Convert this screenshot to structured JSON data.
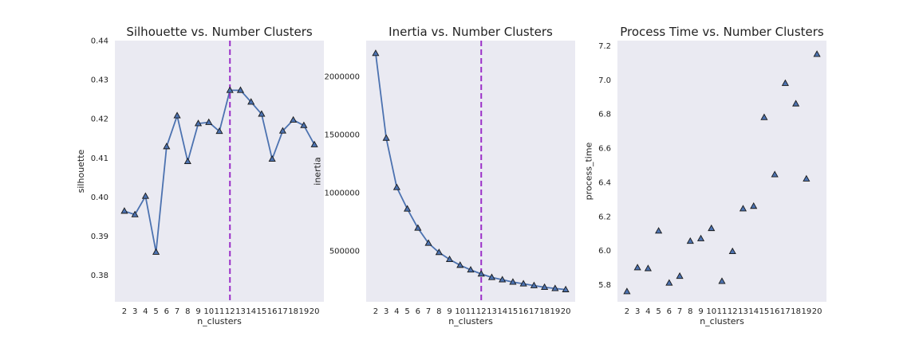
{
  "chart_data": [
    {
      "type": "line",
      "title": "Silhouette vs. Number Clusters",
      "xlabel": "n_clusters",
      "ylabel": "silhouette",
      "x": [
        2,
        3,
        4,
        5,
        6,
        7,
        8,
        9,
        10,
        11,
        12,
        13,
        14,
        15,
        16,
        17,
        18,
        19,
        20
      ],
      "values": [
        0.3964,
        0.3955,
        0.4002,
        0.3859,
        0.4129,
        0.4208,
        0.4091,
        0.4188,
        0.4191,
        0.4168,
        0.4273,
        0.4273,
        0.4243,
        0.4212,
        0.4097,
        0.4169,
        0.4197,
        0.4183,
        0.4134
      ],
      "xlim": [
        1.1,
        20.9
      ],
      "ylim": [
        0.3732,
        0.44
      ],
      "yticks": [
        0.38,
        0.39,
        0.4,
        0.41,
        0.42,
        0.43,
        0.44
      ],
      "ytick_labels": [
        "0.38",
        "0.39",
        "0.40",
        "0.41",
        "0.42",
        "0.43",
        "0.44"
      ],
      "xticks": [
        2,
        3,
        4,
        5,
        6,
        7,
        8,
        9,
        10,
        11,
        12,
        13,
        14,
        15,
        16,
        17,
        18,
        19,
        20
      ],
      "vline_x": 12,
      "grid": false,
      "color": "#4c72b0",
      "vline_color": "#9b30c8",
      "background": "#eaeaf2"
    },
    {
      "type": "line",
      "title": "Inertia vs. Number Clusters",
      "xlabel": "n_clusters",
      "ylabel": "inertia",
      "x": [
        2,
        3,
        4,
        5,
        6,
        7,
        8,
        9,
        10,
        11,
        12,
        13,
        14,
        15,
        16,
        17,
        18,
        19,
        20
      ],
      "values": [
        2200000,
        1470000,
        1045000,
        860000,
        695000,
        565000,
        485000,
        425000,
        375000,
        335000,
        300000,
        270000,
        250000,
        230000,
        215000,
        200000,
        185000,
        175000,
        165000
      ],
      "xlim": [
        1.1,
        20.9
      ],
      "ylim": [
        60000,
        2310000
      ],
      "yticks": [
        500000,
        1000000,
        1500000,
        2000000
      ],
      "ytick_labels": [
        "500000",
        "1000000",
        "1500000",
        "2000000"
      ],
      "xticks": [
        2,
        3,
        4,
        5,
        6,
        7,
        8,
        9,
        10,
        11,
        12,
        13,
        14,
        15,
        16,
        17,
        18,
        19,
        20
      ],
      "vline_x": 12,
      "grid": false,
      "color": "#4c72b0",
      "vline_color": "#9b30c8",
      "background": "#eaeaf2"
    },
    {
      "type": "scatter",
      "title": "Process Time vs. Number Clusters",
      "xlabel": "n_clusters",
      "ylabel": "process_time",
      "x": [
        2,
        3,
        4,
        5,
        6,
        7,
        8,
        9,
        10,
        11,
        12,
        13,
        14,
        15,
        16,
        17,
        18,
        19,
        20
      ],
      "values": [
        5.76,
        5.9,
        5.895,
        6.115,
        5.81,
        5.85,
        6.055,
        6.07,
        6.13,
        5.82,
        5.995,
        6.245,
        6.26,
        6.78,
        6.445,
        6.98,
        6.86,
        6.42,
        7.15
      ],
      "xlim": [
        1.1,
        20.9
      ],
      "ylim": [
        5.7,
        7.23
      ],
      "yticks": [
        5.8,
        6.0,
        6.2,
        6.4,
        6.6,
        6.8,
        7.0,
        7.2
      ],
      "ytick_labels": [
        "5.8",
        "6.0",
        "6.2",
        "6.4",
        "6.6",
        "6.8",
        "7.0",
        "7.2"
      ],
      "xticks": [
        2,
        3,
        4,
        5,
        6,
        7,
        8,
        9,
        10,
        11,
        12,
        13,
        14,
        15,
        16,
        17,
        18,
        19,
        20
      ],
      "grid": false,
      "color": "#4c72b0",
      "background": "#eaeaf2"
    }
  ]
}
